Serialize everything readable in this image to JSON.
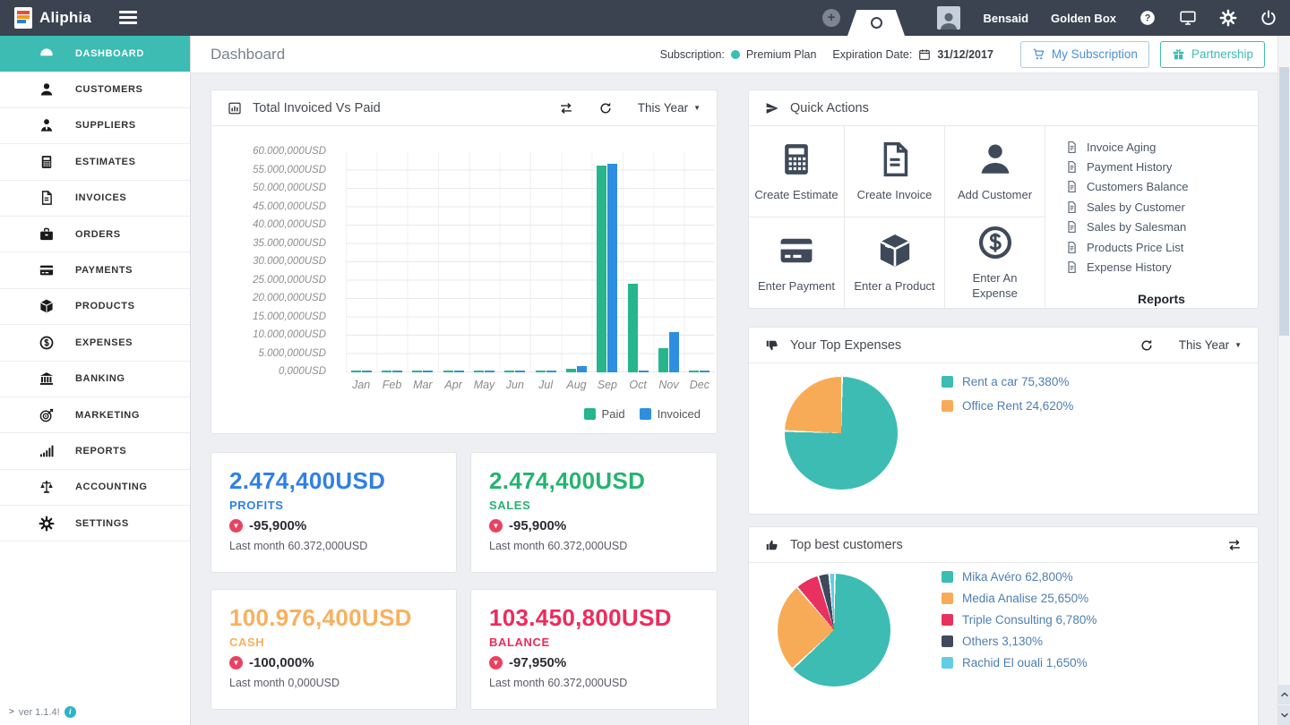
{
  "navbar": {
    "brand": "Aliphia",
    "user_name": "Bensaid",
    "company_name": "Golden Box"
  },
  "sidebar": {
    "version_text": "ver 1.1.4!",
    "items": [
      {
        "label": "DASHBOARD",
        "icon": "dashboard-icon",
        "active": true
      },
      {
        "label": "CUSTOMERS",
        "icon": "customers-icon"
      },
      {
        "label": "SUPPLIERS",
        "icon": "suppliers-icon"
      },
      {
        "label": "ESTIMATES",
        "icon": "calculator-icon"
      },
      {
        "label": "INVOICES",
        "icon": "invoice-icon"
      },
      {
        "label": "ORDERS",
        "icon": "briefcase-icon"
      },
      {
        "label": "PAYMENTS",
        "icon": "credit-card-icon"
      },
      {
        "label": "PRODUCTS",
        "icon": "box-icon"
      },
      {
        "label": "EXPENSES",
        "icon": "dollar-circle-icon"
      },
      {
        "label": "BANKING",
        "icon": "bank-icon"
      },
      {
        "label": "MARKETING",
        "icon": "target-icon"
      },
      {
        "label": "REPORTS",
        "icon": "bar-chart-icon"
      },
      {
        "label": "ACCOUNTING",
        "icon": "scales-icon"
      },
      {
        "label": "SETTINGS",
        "icon": "gear-icon"
      }
    ]
  },
  "page_header": {
    "title": "Dashboard",
    "subscription_label": "Subscription:",
    "subscription_value": "Premium Plan",
    "expiration_label": "Expiration Date:",
    "expiration_value": "31/12/2017",
    "my_subscription_button": "My Subscription",
    "partnership_button": "Partnership"
  },
  "invoiced_panel": {
    "title": "Total Invoiced Vs Paid",
    "period_selector": "This Year"
  },
  "quick_actions": {
    "title": "Quick Actions",
    "actions": [
      {
        "label": "Create Estimate",
        "icon": "calculator-icon"
      },
      {
        "label": "Create Invoice",
        "icon": "invoice-icon"
      },
      {
        "label": "Add Customer",
        "icon": "customers-icon"
      },
      {
        "label": "Enter Payment",
        "icon": "credit-card-icon"
      },
      {
        "label": "Enter a Product",
        "icon": "box-icon"
      },
      {
        "label": "Enter An Expense",
        "icon": "dollar-circle-icon"
      }
    ],
    "reports_heading": "Reports",
    "report_links": [
      "Invoice Aging",
      "Payment History",
      "Customers Balance",
      "Sales by Customer",
      "Sales by Salesman",
      "Products Price List",
      "Expense History"
    ]
  },
  "expenses_panel": {
    "title": "Your Top Expenses",
    "period_selector": "This Year"
  },
  "customers_panel": {
    "title": "Top best customers"
  },
  "stat_cards": [
    {
      "value": "2.474,400USD",
      "label": "PROFITS",
      "color": "#2f80e7",
      "change": "-95,900%",
      "last_month": "Last month 60.372,000USD"
    },
    {
      "value": "2.474,400USD",
      "label": "SALES",
      "color": "#25b372",
      "change": "-95,900%",
      "last_month": "Last month 60.372,000USD"
    },
    {
      "value": "100.976,400USD",
      "label": "CASH",
      "color": "#f8b05e",
      "change": "-100,000%",
      "last_month": "Last month 0,000USD"
    },
    {
      "value": "103.450,800USD",
      "label": "BALANCE",
      "color": "#ee2b5b",
      "change": "-97,950%",
      "last_month": "Last month 60.372,000USD"
    }
  ],
  "chart_data": [
    {
      "type": "bar",
      "title": "Total Invoiced Vs Paid",
      "categories": [
        "Jan",
        "Feb",
        "Mar",
        "Apr",
        "May",
        "Jun",
        "Jul",
        "Aug",
        "Sep",
        "Oct",
        "Nov",
        "Dec"
      ],
      "series": [
        {
          "name": "Paid",
          "color": "#26b58c",
          "values_million_usd": [
            0.3,
            0.55,
            0.45,
            0.15,
            0.15,
            0.25,
            0.05,
            1.0,
            56.3,
            24.2,
            6.5,
            0.1
          ]
        },
        {
          "name": "Invoiced",
          "color": "#2e8fe0",
          "values_million_usd": [
            0.3,
            0.55,
            0.4,
            0.15,
            0.15,
            0.2,
            0.05,
            1.7,
            56.8,
            0.5,
            11.0,
            0.1
          ]
        }
      ],
      "ylim_million_usd": [
        0,
        60
      ],
      "y_tick_labels": [
        "60.000,000USD",
        "55.000,000USD",
        "50.000,000USD",
        "45.000,000USD",
        "40.000,000USD",
        "35.000,000USD",
        "30.000,000USD",
        "25.000,000USD",
        "20.000,000USD",
        "15.000,000USD",
        "10.000,000USD",
        "5.000,000USD",
        "0,000USD"
      ],
      "legend_position": "bottom-right",
      "grid": true
    },
    {
      "type": "pie",
      "title": "Your Top Expenses",
      "slices": [
        {
          "label": "Rent a car",
          "display": "75,380%",
          "value": 75.38,
          "color": "#3cbcb2"
        },
        {
          "label": "Office Rent",
          "display": "24,620%",
          "value": 24.62,
          "color": "#f8ab57"
        }
      ]
    },
    {
      "type": "pie",
      "title": "Top best customers",
      "slices": [
        {
          "label": "Mika Avéro",
          "display": "62,800%",
          "value": 62.8,
          "color": "#3cbcb2"
        },
        {
          "label": "Media Analise",
          "display": "25,650%",
          "value": 25.65,
          "color": "#f8ab57"
        },
        {
          "label": "Triple Consulting",
          "display": "6,780%",
          "value": 6.78,
          "color": "#e8315f"
        },
        {
          "label": "Others",
          "display": "3,130%",
          "value": 3.13,
          "color": "#3f4a5a"
        },
        {
          "label": "Rachid El ouali",
          "display": "1,650%",
          "value": 1.65,
          "color": "#63cde4"
        }
      ]
    }
  ]
}
